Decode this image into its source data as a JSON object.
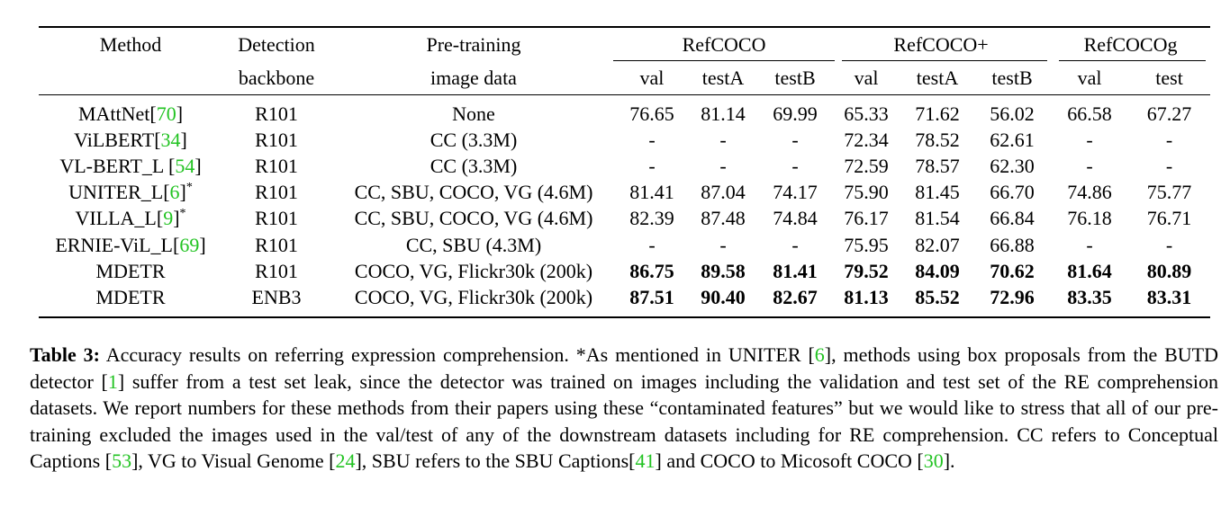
{
  "table": {
    "headers": {
      "method": "Method",
      "detection_1": "Detection",
      "detection_2": "backbone",
      "pretrain_1": "Pre-training",
      "pretrain_2": "image data",
      "groups": [
        "RefCOCO",
        "RefCOCO+",
        "RefCOCOg"
      ],
      "subcols": [
        "val",
        "testA",
        "testB",
        "val",
        "testA",
        "testB",
        "val",
        "test"
      ]
    },
    "rows": [
      {
        "method": "MAttNet",
        "cite": "70",
        "suffix": "",
        "backbone": "R101",
        "data": "None",
        "values": [
          "76.65",
          "81.14",
          "69.99",
          "65.33",
          "71.62",
          "56.02",
          "66.58",
          "67.27"
        ],
        "bold": false
      },
      {
        "method": "ViLBERT",
        "cite": "34",
        "suffix": "",
        "backbone": "R101",
        "data": "CC (3.3M)",
        "values": [
          "-",
          "-",
          "-",
          "72.34",
          "78.52",
          "62.61",
          "-",
          "-"
        ],
        "bold": false
      },
      {
        "method": "VL-BERT_L ",
        "cite": "54",
        "suffix": "",
        "backbone": "R101",
        "data": "CC (3.3M)",
        "values": [
          "-",
          "-",
          "-",
          "72.59",
          "78.57",
          "62.30",
          "-",
          "-"
        ],
        "bold": false
      },
      {
        "method": "UNITER_L",
        "cite": "6",
        "suffix": "*",
        "backbone": "R101",
        "data": "CC, SBU, COCO, VG (4.6M)",
        "values": [
          "81.41",
          "87.04",
          "74.17",
          "75.90",
          "81.45",
          "66.70",
          "74.86",
          "75.77"
        ],
        "bold": false
      },
      {
        "method": "VILLA_L",
        "cite": "9",
        "suffix": "*",
        "backbone": "R101",
        "data": "CC, SBU, COCO, VG (4.6M)",
        "values": [
          "82.39",
          "87.48",
          "74.84",
          "76.17",
          "81.54",
          "66.84",
          "76.18",
          "76.71"
        ],
        "bold": false
      },
      {
        "method": "ERNIE-ViL_L",
        "cite": "69",
        "suffix": "",
        "backbone": "R101",
        "data": "CC, SBU (4.3M)",
        "values": [
          "-",
          "-",
          "-",
          "75.95",
          "82.07",
          "66.88",
          "-",
          "-"
        ],
        "bold": false
      },
      {
        "method": "MDETR",
        "cite": "",
        "suffix": "",
        "backbone": "R101",
        "data": "COCO, VG, Flickr30k (200k)",
        "values": [
          "86.75",
          "89.58",
          "81.41",
          "79.52",
          "84.09",
          "70.62",
          "81.64",
          "80.89"
        ],
        "bold": true
      },
      {
        "method": "MDETR",
        "cite": "",
        "suffix": "",
        "backbone": "ENB3",
        "data": "COCO, VG, Flickr30k (200k)",
        "values": [
          "87.51",
          "90.40",
          "82.67",
          "81.13",
          "85.52",
          "72.96",
          "83.35",
          "83.31"
        ],
        "bold": true
      }
    ]
  },
  "caption": {
    "label": "Table 3:",
    "segments": [
      {
        "text": " Accuracy results on referring expression comprehension. *As mentioned in UNITER ",
        "ref": false
      },
      {
        "text": "[",
        "ref": false
      },
      {
        "text": "6",
        "ref": true
      },
      {
        "text": "], methods using box proposals from the BUTD detector ",
        "ref": false
      },
      {
        "text": "[",
        "ref": false
      },
      {
        "text": "1",
        "ref": true
      },
      {
        "text": "] suffer from a test set leak, since the detector was trained on images including the validation and test set of the RE comprehension datasets. We report numbers for these methods from their papers using these “contaminated features” but we would like to stress that all of our pre-training excluded the images used in the val/test of any of the downstream datasets including for RE comprehension. CC refers to Conceptual Captions ",
        "ref": false
      },
      {
        "text": "[",
        "ref": false
      },
      {
        "text": "53",
        "ref": true
      },
      {
        "text": "], VG to Visual Genome ",
        "ref": false
      },
      {
        "text": "[",
        "ref": false
      },
      {
        "text": "24",
        "ref": true
      },
      {
        "text": "], SBU refers to the SBU Captions",
        "ref": false
      },
      {
        "text": "[",
        "ref": false
      },
      {
        "text": "41",
        "ref": true
      },
      {
        "text": "] and COCO to Micosoft COCO ",
        "ref": false
      },
      {
        "text": "[",
        "ref": false
      },
      {
        "text": "30",
        "ref": true
      },
      {
        "text": "].",
        "ref": false
      }
    ]
  },
  "colors": {
    "citation": "#22c322",
    "text": "#000000"
  }
}
